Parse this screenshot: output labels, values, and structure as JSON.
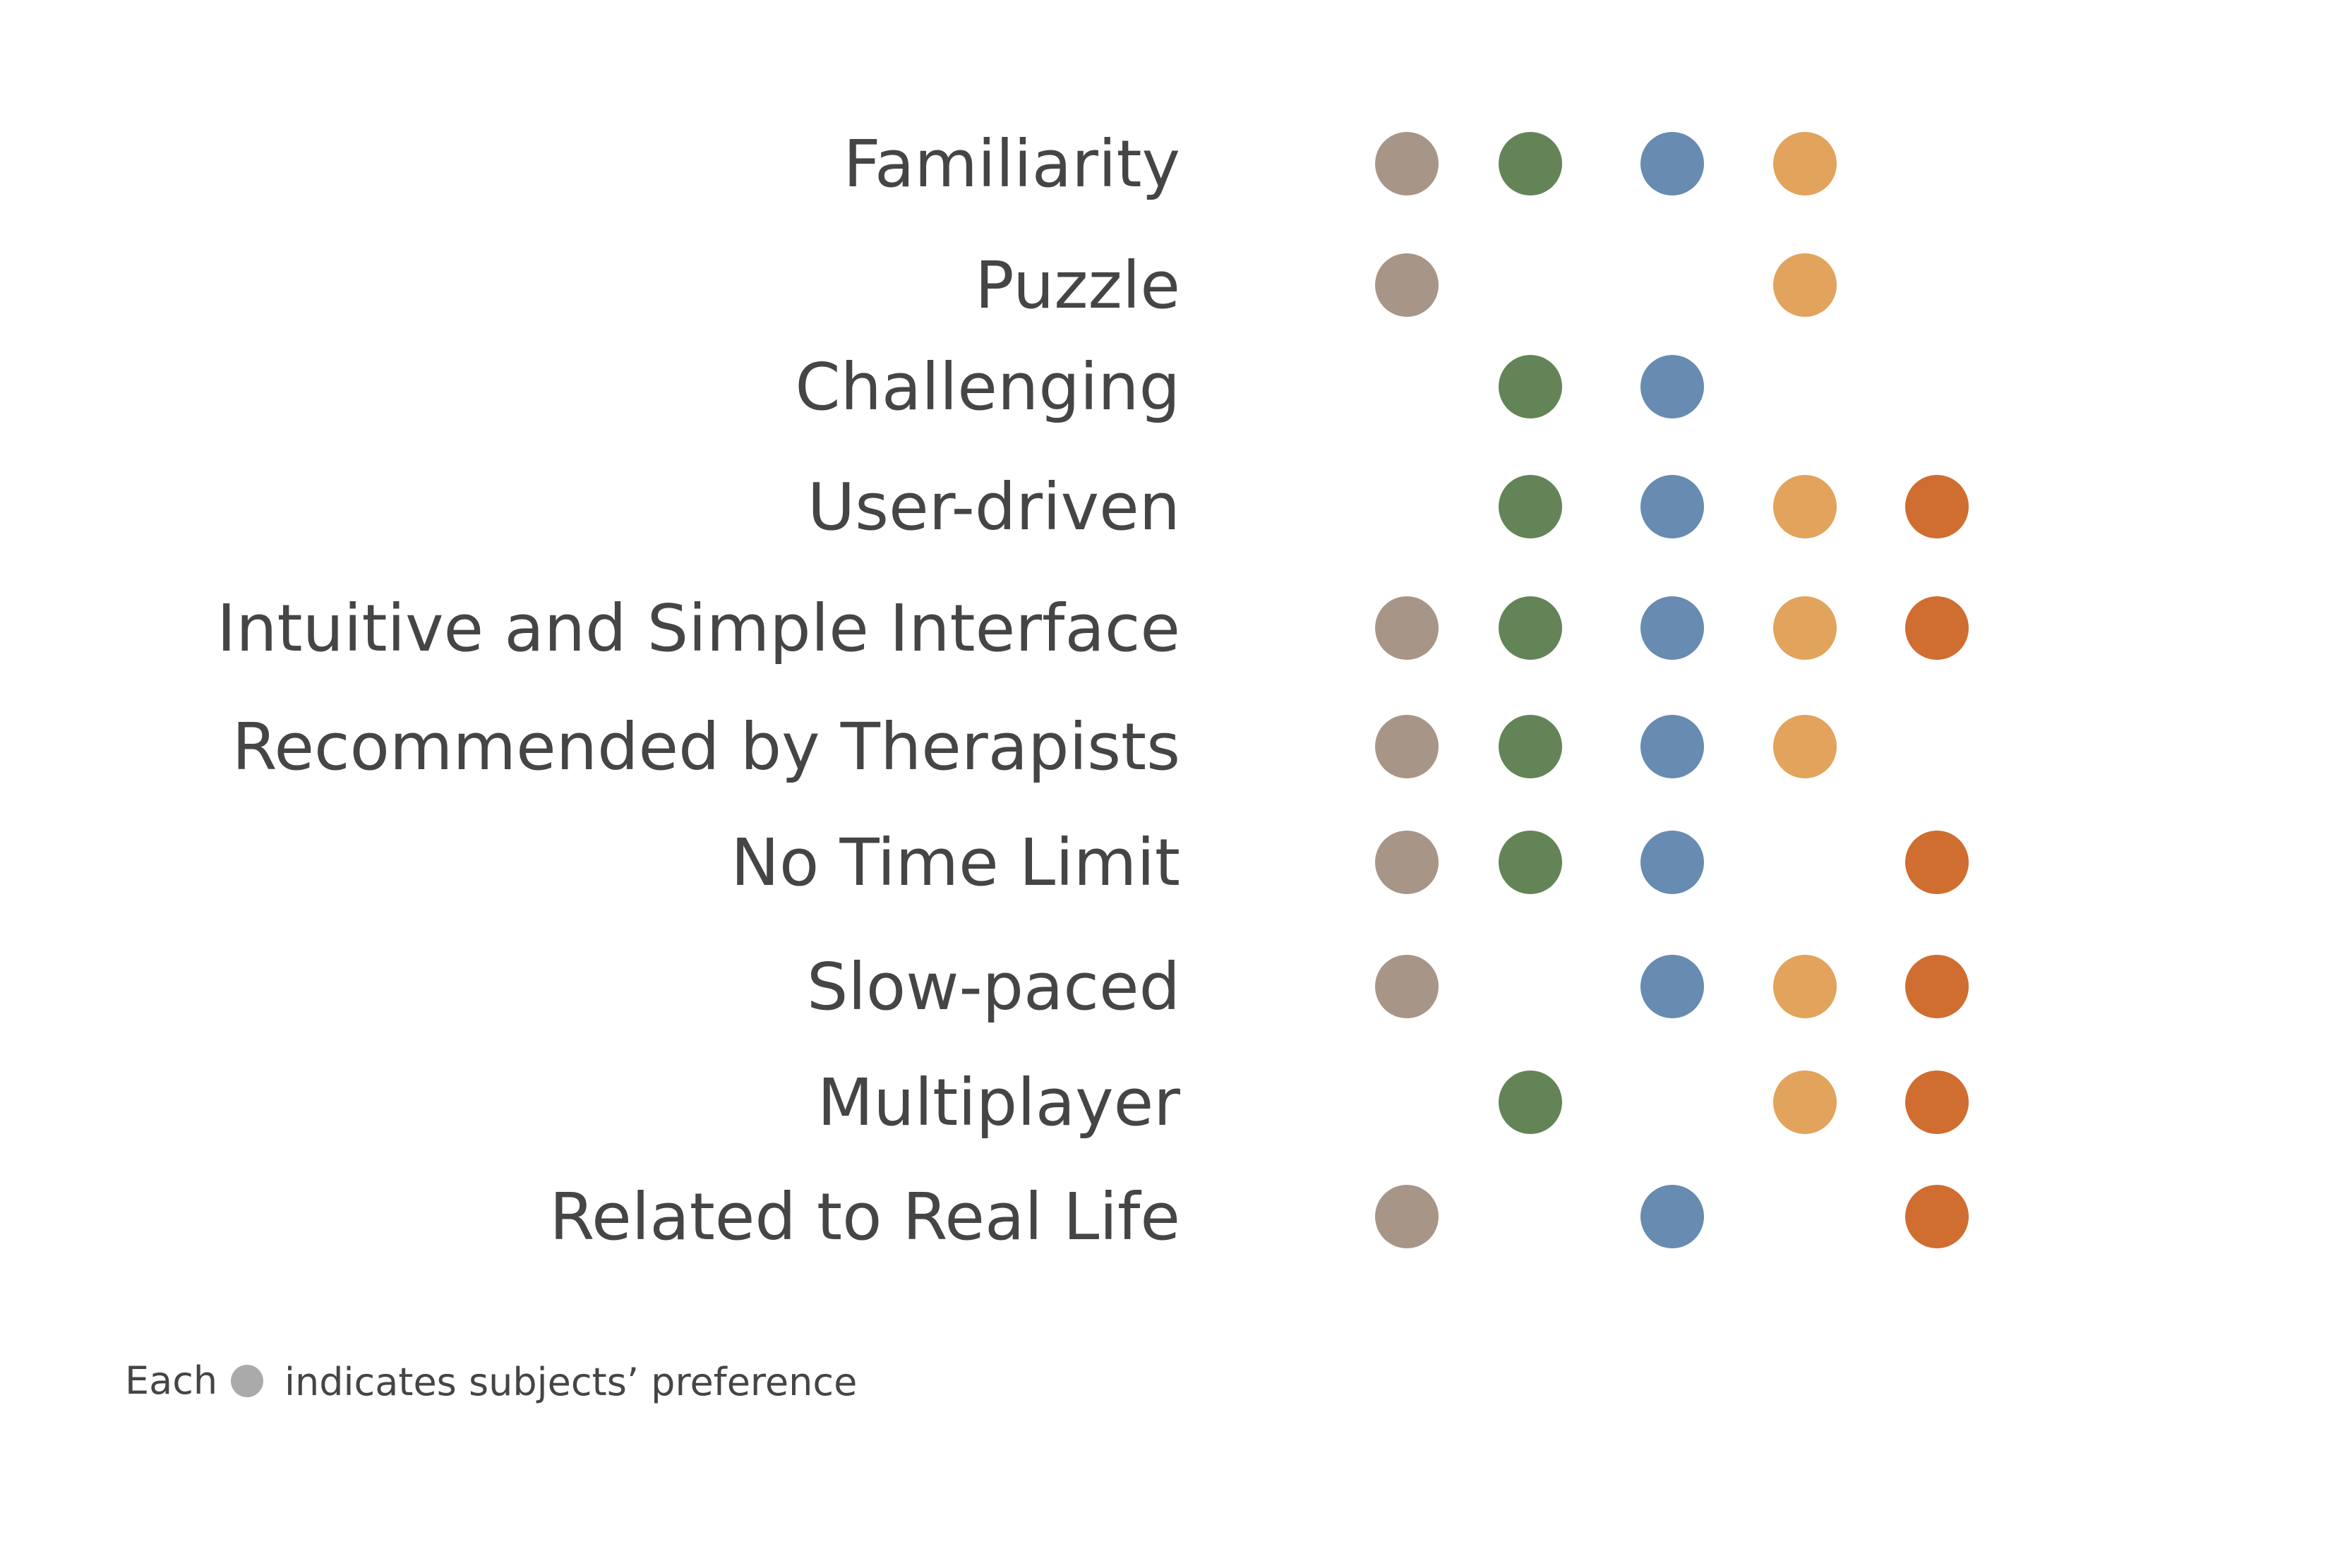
{
  "chart_data": {
    "type": "scatter",
    "title": "",
    "xlabel": "",
    "ylabel": "",
    "grid": false,
    "categories": [
      "Familiarity",
      "Puzzle",
      "Challenging",
      "User-driven",
      "Intuitive and Simple Interface",
      "Recommended by Therapists",
      "No Time Limit",
      "Slow-paced",
      "Multiplayer",
      "Related to Real Life"
    ],
    "series": [
      {
        "color": "#a79688",
        "values": [
          1,
          1,
          0,
          0,
          1,
          1,
          1,
          1,
          0,
          1
        ]
      },
      {
        "color": "#638457",
        "values": [
          1,
          0,
          1,
          1,
          1,
          1,
          1,
          0,
          1,
          0
        ]
      },
      {
        "color": "#678bb1",
        "values": [
          1,
          0,
          1,
          1,
          1,
          1,
          1,
          1,
          0,
          1
        ]
      },
      {
        "color": "#e2a35c",
        "values": [
          1,
          1,
          0,
          1,
          1,
          1,
          0,
          1,
          1,
          0
        ]
      },
      {
        "color": "#d06d30",
        "values": [
          0,
          0,
          0,
          1,
          1,
          0,
          1,
          1,
          1,
          1
        ]
      }
    ],
    "legend": {
      "placement": "bottom-left",
      "prefix": "Each",
      "suffix": "indicates subjects’ preference",
      "marker_color": "#aaaaaa"
    }
  }
}
